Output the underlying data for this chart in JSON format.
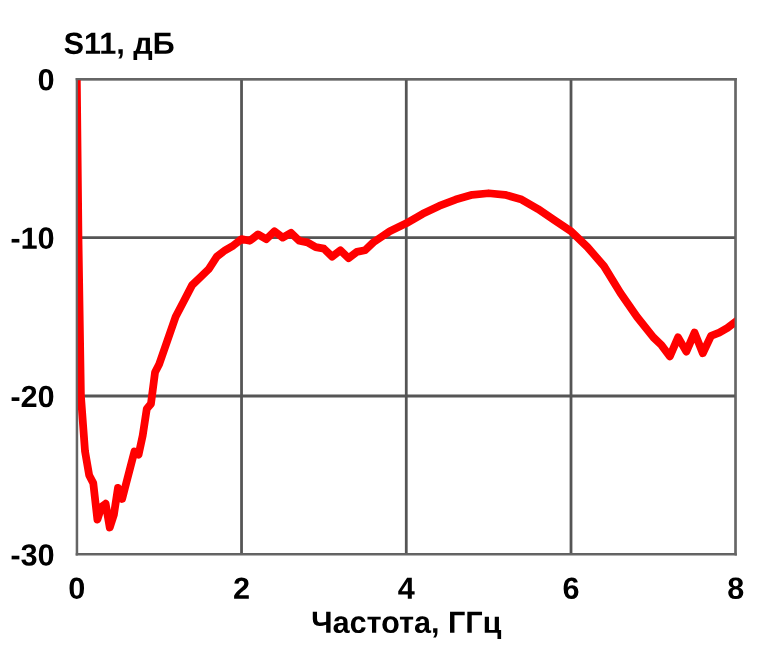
{
  "chart_data": {
    "type": "line",
    "ylabel": "S11, дБ",
    "xlabel": "Частота, ГГц",
    "series": [
      {
        "color": "#ff0000",
        "x": [
          0,
          0.02,
          0.05,
          0.1,
          0.15,
          0.2,
          0.25,
          0.3,
          0.35,
          0.4,
          0.45,
          0.5,
          0.55,
          0.6,
          0.65,
          0.7,
          0.75,
          0.8,
          0.85,
          0.9,
          0.95,
          1.0,
          1.1,
          1.2,
          1.3,
          1.4,
          1.5,
          1.6,
          1.7,
          1.8,
          1.9,
          2.0,
          2.1,
          2.2,
          2.3,
          2.4,
          2.5,
          2.6,
          2.7,
          2.8,
          2.9,
          3.0,
          3.1,
          3.2,
          3.3,
          3.4,
          3.5,
          3.6,
          3.8,
          4.0,
          4.2,
          4.4,
          4.6,
          4.8,
          5.0,
          5.2,
          5.4,
          5.6,
          5.8,
          6.0,
          6.2,
          6.4,
          6.6,
          6.8,
          7.0,
          7.1,
          7.2,
          7.3,
          7.4,
          7.5,
          7.6,
          7.7,
          7.8,
          7.9,
          8.0
        ],
        "values": [
          0,
          -10,
          -20,
          -23.5,
          -25,
          -25.5,
          -27.8,
          -27,
          -26.8,
          -28.3,
          -27.5,
          -25.8,
          -26.5,
          -25.5,
          -24.5,
          -23.5,
          -23.7,
          -22.5,
          -20.8,
          -20.5,
          -18.5,
          -18,
          -16.5,
          -15,
          -14,
          -13,
          -12.5,
          -12,
          -11.2,
          -10.8,
          -10.5,
          -10.1,
          -10.2,
          -9.8,
          -10.1,
          -9.6,
          -10,
          -9.7,
          -10.2,
          -10.3,
          -10.6,
          -10.7,
          -11.2,
          -10.8,
          -11.3,
          -10.9,
          -10.8,
          -10.3,
          -9.6,
          -9.1,
          -8.5,
          -8.0,
          -7.6,
          -7.3,
          -7.2,
          -7.3,
          -7.6,
          -8.2,
          -8.9,
          -9.6,
          -10.6,
          -11.8,
          -13.5,
          -15.0,
          -16.3,
          -16.8,
          -17.5,
          -16.3,
          -17.2,
          -16.0,
          -17.3,
          -16.2,
          -16.0,
          -15.7,
          -15.3
        ]
      }
    ],
    "xlim": [
      0,
      8
    ],
    "ylim": [
      -30,
      0
    ],
    "xticks": [
      0,
      2,
      4,
      6,
      8
    ],
    "yticks": [
      -30,
      -20,
      -10,
      0
    ],
    "grid": true,
    "line_style": "solid",
    "legend": false
  }
}
